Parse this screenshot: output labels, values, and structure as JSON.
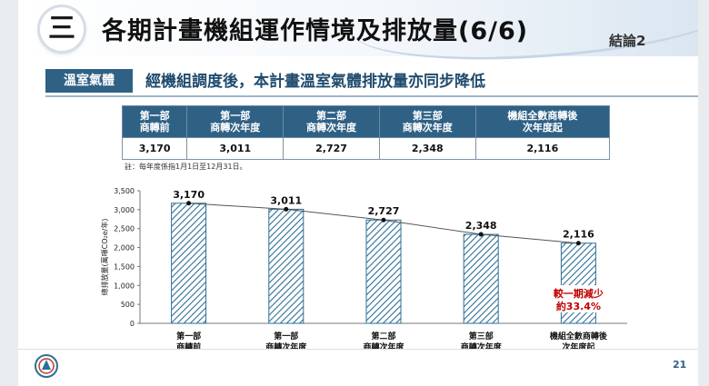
{
  "header": {
    "section_number": "三",
    "title": "各期計畫機組運作情境及排放量(6/6)",
    "corner_label": "結論2"
  },
  "section": {
    "tag": "溫室氣體",
    "subtitle": "經機組調度後，本計畫溫室氣體排放量亦同步降低"
  },
  "table": {
    "headers": [
      [
        "第一部",
        "商轉前"
      ],
      [
        "第一部",
        "商轉次年度"
      ],
      [
        "第二部",
        "商轉次年度"
      ],
      [
        "第三部",
        "商轉次年度"
      ],
      [
        "機組全數商轉後",
        "次年度起"
      ]
    ],
    "values": [
      "3,170",
      "3,011",
      "2,727",
      "2,348",
      "2,116"
    ]
  },
  "note": "註：每年度係指1月1日至12月31日。",
  "chart_data": {
    "type": "bar",
    "categories": [
      [
        "第一部",
        "商轉前"
      ],
      [
        "第一部",
        "商轉次年度"
      ],
      [
        "第二部",
        "商轉次年度"
      ],
      [
        "第三部",
        "商轉次年度"
      ],
      [
        "機組全數商轉後",
        "次年度起"
      ]
    ],
    "values": [
      3170,
      3011,
      2727,
      2348,
      2116
    ],
    "value_labels": [
      "3,170",
      "3,011",
      "2,727",
      "2,348",
      "2,116"
    ],
    "ylabel": "總排放量(萬噸CO₂e/年)",
    "ylim": [
      0,
      3500
    ],
    "yticks": [
      0,
      500,
      1000,
      1500,
      2000,
      2500,
      3000,
      3500
    ],
    "ytick_labels": [
      "0",
      "500",
      "1,000",
      "1,500",
      "2,000",
      "2,500",
      "3,000",
      "3,500"
    ],
    "trend_line": true,
    "bar_style": "hatched",
    "colors": {
      "bar_stroke": "#2e6f96",
      "hatch": "#2e6f96",
      "trend": "#555555",
      "annotation": "#c00000"
    },
    "annotation": [
      "較一期減少",
      "約33.4%"
    ],
    "grid": false
  },
  "footer": {
    "page": "21"
  }
}
